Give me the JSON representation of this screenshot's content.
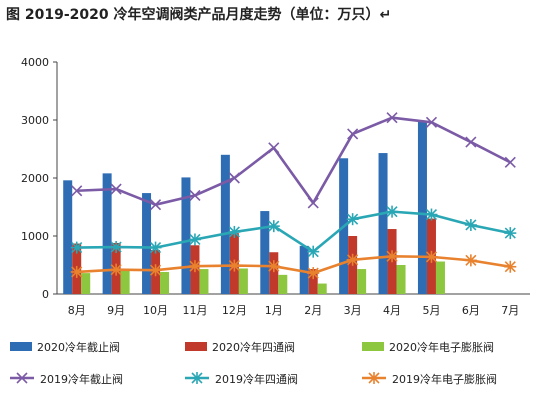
{
  "chart_data": {
    "type": "bar",
    "title": "图   2019-2020 冷年空调阀类产品月度走势（单位：万只）↵",
    "xlabel": "",
    "ylabel": "",
    "categories": [
      "8月",
      "9月",
      "10月",
      "11月",
      "12月",
      "1月",
      "2月",
      "3月",
      "4月",
      "5月",
      "6月",
      "7月"
    ],
    "ylim": [
      0,
      4000
    ],
    "yticks": [
      0,
      1000,
      2000,
      3000,
      4000
    ],
    "grid": false,
    "legend_position": "bottom",
    "bar_series": [
      {
        "name": "2020冷年截止阀",
        "color": "#2e6db4",
        "values": [
          1960,
          2080,
          1740,
          2010,
          2400,
          1430,
          830,
          2340,
          2430,
          2990,
          null,
          null
        ]
      },
      {
        "name": "2020冷年四通阀",
        "color": "#c0392b",
        "values": [
          870,
          880,
          760,
          840,
          1050,
          720,
          430,
          1000,
          1120,
          1300,
          null,
          null
        ]
      },
      {
        "name": "2020冷年电子膨胀阀",
        "color": "#8dc63f",
        "values": [
          360,
          420,
          380,
          430,
          440,
          330,
          180,
          430,
          500,
          560,
          null,
          null
        ]
      }
    ],
    "line_series": [
      {
        "name": "2019冷年截止阀",
        "color": "#7b5aa6",
        "values": [
          1780,
          1810,
          1540,
          1700,
          2000,
          2520,
          1570,
          2760,
          3040,
          2960,
          2620,
          2270
        ]
      },
      {
        "name": "2019冷年四通阀",
        "color": "#2aa7b5",
        "values": [
          800,
          810,
          800,
          940,
          1070,
          1170,
          730,
          1290,
          1420,
          1370,
          1190,
          1050
        ]
      },
      {
        "name": "2019冷年电子膨胀阀",
        "color": "#e8822e",
        "values": [
          380,
          420,
          410,
          480,
          490,
          480,
          360,
          590,
          650,
          640,
          580,
          470
        ]
      }
    ]
  }
}
